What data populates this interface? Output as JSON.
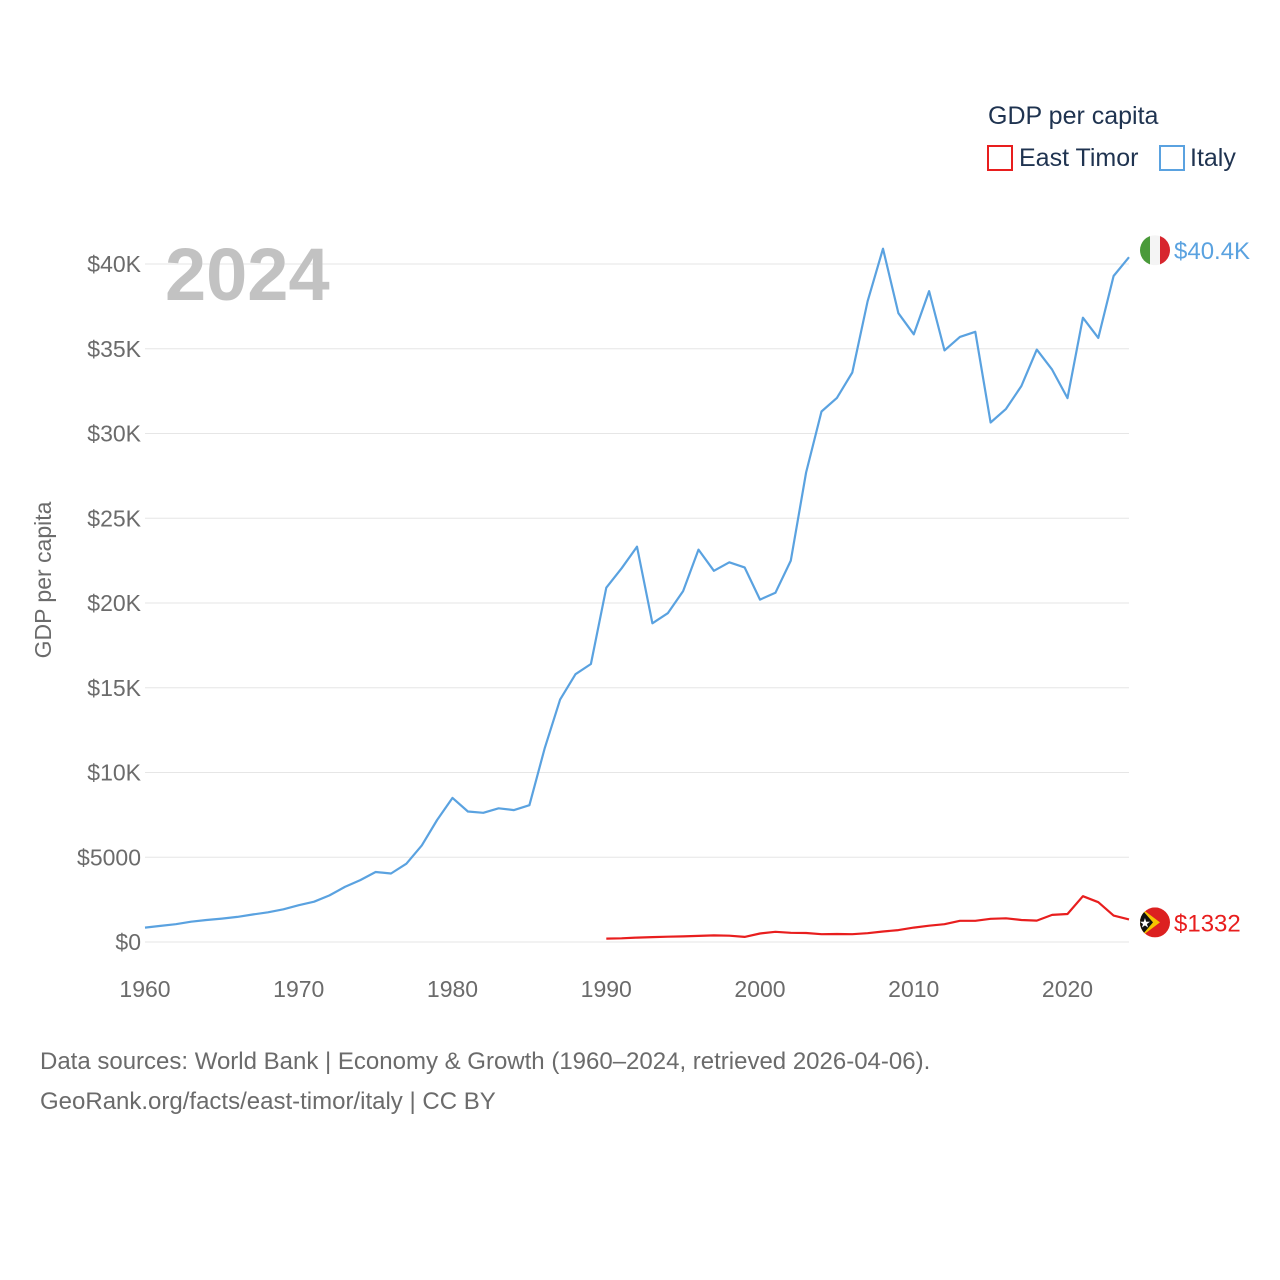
{
  "chart_data": {
    "type": "line",
    "title": "GDP per capita",
    "year_label": "2024",
    "xlabel": "",
    "ylabel": "GDP per capita",
    "xlim": [
      1960,
      2024
    ],
    "ylim": [
      0,
      40000
    ],
    "x_ticks": [
      1960,
      1970,
      1980,
      1990,
      2000,
      2010,
      2020
    ],
    "y_ticks": [
      0,
      5000,
      10000,
      15000,
      20000,
      25000,
      30000,
      35000,
      40000
    ],
    "y_tick_labels": [
      "$0",
      "$5000",
      "$10K",
      "$15K",
      "$20K",
      "$25K",
      "$30K",
      "$35K",
      "$40K"
    ],
    "legend": {
      "title": "GDP per capita",
      "position": "top-right",
      "entries": [
        "East Timor",
        "Italy"
      ]
    },
    "series": [
      {
        "name": "Italy",
        "color": "#5aa2e0",
        "end_label": "$40.4K",
        "flag": "italy-flag",
        "x": [
          1960,
          1961,
          1962,
          1963,
          1964,
          1965,
          1966,
          1967,
          1968,
          1969,
          1970,
          1971,
          1972,
          1973,
          1974,
          1975,
          1976,
          1977,
          1978,
          1979,
          1980,
          1981,
          1982,
          1983,
          1984,
          1985,
          1986,
          1987,
          1988,
          1989,
          1990,
          1991,
          1992,
          1993,
          1994,
          1995,
          1996,
          1997,
          1998,
          1999,
          2000,
          2001,
          2002,
          2003,
          2004,
          2005,
          2006,
          2007,
          2008,
          2009,
          2010,
          2011,
          2012,
          2013,
          2014,
          2015,
          2016,
          2017,
          2018,
          2019,
          2020,
          2021,
          2022,
          2023,
          2024
        ],
        "values": [
          850,
          950,
          1050,
          1200,
          1300,
          1380,
          1480,
          1620,
          1750,
          1930,
          2170,
          2380,
          2750,
          3250,
          3650,
          4130,
          4040,
          4620,
          5700,
          7200,
          8500,
          7700,
          7620,
          7890,
          7780,
          8070,
          11450,
          14300,
          15800,
          16400,
          20900,
          22050,
          23320,
          18800,
          19400,
          20700,
          23150,
          21900,
          22400,
          22100,
          20200,
          20600,
          22500,
          27700,
          31300,
          32100,
          33600,
          37800,
          40900,
          37100,
          35850,
          38400,
          34900,
          35700,
          36000,
          30650,
          31450,
          32800,
          34950,
          33770,
          32090,
          36830,
          35640,
          39290,
          40400
        ]
      },
      {
        "name": "East Timor",
        "color": "#e81e1e",
        "end_label": "$1332",
        "flag": "east-timor-flag",
        "x": [
          1990,
          1991,
          1992,
          1993,
          1994,
          1995,
          1996,
          1997,
          1998,
          1999,
          2000,
          2001,
          2002,
          2003,
          2004,
          2005,
          2006,
          2007,
          2008,
          2009,
          2010,
          2011,
          2012,
          2013,
          2014,
          2015,
          2016,
          2017,
          2018,
          2019,
          2020,
          2021,
          2022,
          2023,
          2024
        ],
        "values": [
          200,
          220,
          260,
          290,
          310,
          330,
          360,
          390,
          370,
          300,
          500,
          600,
          540,
          530,
          460,
          470,
          460,
          520,
          620,
          700,
          850,
          960,
          1050,
          1250,
          1250,
          1370,
          1400,
          1300,
          1260,
          1600,
          1650,
          2700,
          2350,
          1560,
          1332
        ]
      }
    ]
  },
  "footer": {
    "line1": "Data sources: World Bank | Economy & Growth (1960–2024, retrieved 2026-04-06).",
    "line2": "GeoRank.org/facts/east-timor/italy | CC BY"
  }
}
